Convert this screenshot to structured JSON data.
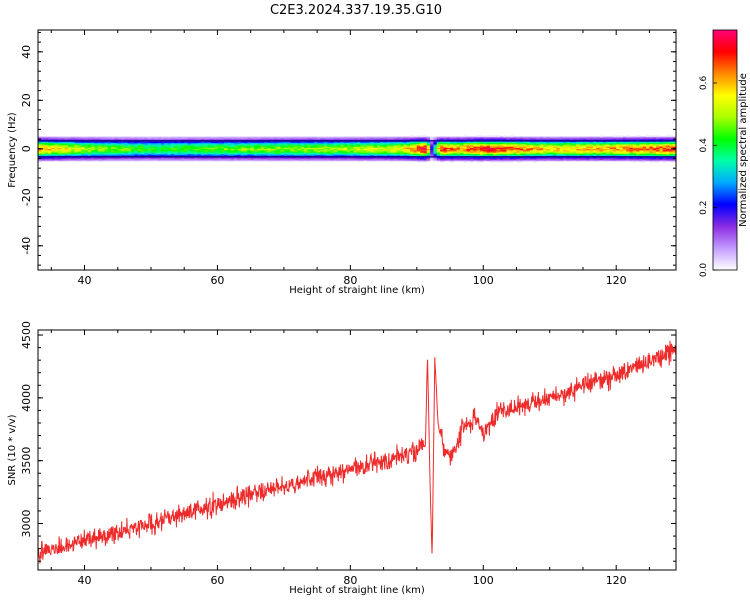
{
  "title": "C2E3.2024.337.19.35.G10",
  "chart_data": [
    {
      "type": "heatmap",
      "xlabel": "Height of straight line (km)",
      "ylabel": "Frequency (Hz)",
      "xlim": [
        33,
        129
      ],
      "ylim": [
        -50,
        49
      ],
      "xticks": [
        40,
        60,
        80,
        100,
        120
      ],
      "yticks": [
        -40,
        -20,
        0,
        20,
        40
      ],
      "colorbar": {
        "label": "Normalized spectral amplitude",
        "range": [
          0.0,
          0.77
        ],
        "ticks": [
          "0.0",
          "0.2",
          "0.4",
          "0.6"
        ],
        "colors": [
          "#ffffff",
          "#c39bff",
          "#8a2be2",
          "#0000ff",
          "#00aaff",
          "#00ffaa",
          "#00ff00",
          "#aaff00",
          "#ffff00",
          "#ff8800",
          "#ff0000",
          "#ff0077"
        ]
      },
      "band": {
        "center_hz": 0,
        "halfwidth_hz": 6,
        "profile": [
          {
            "km": 34,
            "peak": 0.62
          },
          {
            "km": 40,
            "peak": 0.5
          },
          {
            "km": 50,
            "peak": 0.42
          },
          {
            "km": 60,
            "peak": 0.45
          },
          {
            "km": 70,
            "peak": 0.48
          },
          {
            "km": 80,
            "peak": 0.5
          },
          {
            "km": 88,
            "peak": 0.55
          },
          {
            "km": 91.5,
            "peak": 0.77
          },
          {
            "km": 92.3,
            "peak": 0.15
          },
          {
            "km": 93.5,
            "peak": 0.7
          },
          {
            "km": 96,
            "peak": 0.62
          },
          {
            "km": 100,
            "peak": 0.72
          },
          {
            "km": 110,
            "peak": 0.58
          },
          {
            "km": 120,
            "peak": 0.62
          },
          {
            "km": 129,
            "peak": 0.7
          }
        ]
      },
      "grid": false
    },
    {
      "type": "line",
      "xlabel": "Height of straight line (km)",
      "ylabel": "SNR (10 * v/v)",
      "xlim": [
        33,
        129
      ],
      "ylim": [
        2630,
        4540
      ],
      "xticks": [
        40,
        60,
        80,
        100,
        120
      ],
      "yticks": [
        3000,
        3500,
        4000,
        4500
      ],
      "series": [
        {
          "color": "#ee2b2b",
          "trend": [
            {
              "x": 33,
              "y": 2760
            },
            {
              "x": 40,
              "y": 2860
            },
            {
              "x": 50,
              "y": 3000
            },
            {
              "x": 60,
              "y": 3150
            },
            {
              "x": 70,
              "y": 3300
            },
            {
              "x": 80,
              "y": 3430
            },
            {
              "x": 90,
              "y": 3570
            },
            {
              "x": 91.3,
              "y": 3620
            },
            {
              "x": 91.6,
              "y": 4350
            },
            {
              "x": 92.0,
              "y": 3300
            },
            {
              "x": 92.3,
              "y": 2720
            },
            {
              "x": 92.7,
              "y": 4320
            },
            {
              "x": 93.2,
              "y": 3800
            },
            {
              "x": 94,
              "y": 3600
            },
            {
              "x": 95,
              "y": 3520
            },
            {
              "x": 97,
              "y": 3760
            },
            {
              "x": 99,
              "y": 3840
            },
            {
              "x": 100,
              "y": 3700
            },
            {
              "x": 102,
              "y": 3880
            },
            {
              "x": 110,
              "y": 4000
            },
            {
              "x": 120,
              "y": 4180
            },
            {
              "x": 129,
              "y": 4380
            }
          ],
          "noise_amplitude": 80
        }
      ],
      "grid": false
    }
  ]
}
